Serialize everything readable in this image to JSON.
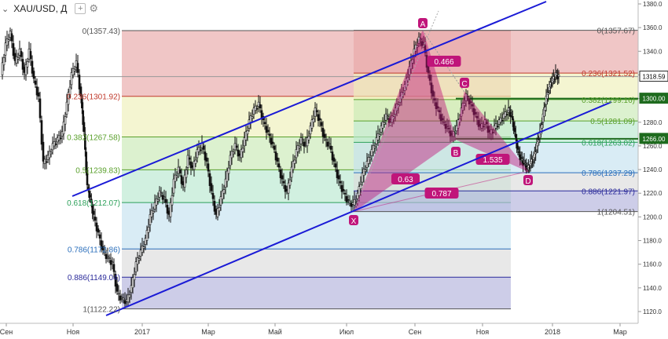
{
  "header": {
    "chevron": "⌄",
    "symbol": "XAU/USD",
    "timeframe": "Д",
    "add_icon": "+",
    "settings_icon": "gear-icon"
  },
  "chart_data": {
    "type": "candlestick",
    "title": "XAU/USD, Д",
    "y_axis": {
      "min": 1120,
      "max": 1380,
      "ticks": [
        1380,
        1360,
        1340,
        1320,
        1300,
        1280,
        1260,
        1240,
        1220,
        1200,
        1180,
        1160,
        1140,
        1120
      ]
    },
    "x_axis": {
      "labels": [
        "Сен",
        "Ноя",
        "2017",
        "Мар",
        "Май",
        "Июл",
        "Сен",
        "Ноя",
        "2018",
        "Мар"
      ]
    },
    "price_labels": [
      {
        "value": "1318.59",
        "price": 1318.59,
        "color": "#ffffff",
        "border": "#222222",
        "text_color": "#000000"
      },
      {
        "value": "1300.00",
        "price": 1300.0,
        "color": "#1e6b1e",
        "border": "#1e6b1e",
        "text_color": "#ffffff"
      },
      {
        "value": "1266.00",
        "price": 1266.0,
        "color": "#1e6b1e",
        "border": "#1e6b1e",
        "text_color": "#ffffff"
      }
    ],
    "fib_left": {
      "levels": [
        {
          "label": "0(1357.43)",
          "price": 1357.43,
          "color": "#555555",
          "fill": "#e8a7a7"
        },
        {
          "label": "0.236(1301.92)",
          "price": 1301.92,
          "color": "#c0392b",
          "fill": "#eef0b8"
        },
        {
          "label": "0.382(1267.58)",
          "price": 1267.58,
          "color": "#5aa02c",
          "fill": "#c9eab5"
        },
        {
          "label": "0.5(1239.83)",
          "price": 1239.83,
          "color": "#5aa02c",
          "fill": "#b8e8d0"
        },
        {
          "label": "0.618(1212.07)",
          "price": 1212.07,
          "color": "#2ca05a",
          "fill": "#c4e2f0"
        },
        {
          "label": "0.786(1172.86)",
          "price": 1172.86,
          "color": "#2a6ebb",
          "fill": "#dcdcdc"
        },
        {
          "label": "0.886(1149.04)",
          "price": 1149.04,
          "color": "#2a2a9a",
          "fill": "#b2b2dc"
        },
        {
          "label": "1(1122.22)",
          "price": 1122.22,
          "color": "#555555",
          "fill": null
        }
      ]
    },
    "fib_right": {
      "levels": [
        {
          "label": "0(1357.67)",
          "price": 1357.67,
          "color": "#555555",
          "fill": "#e8a7a7"
        },
        {
          "label": "0.236(1321.52)",
          "price": 1321.52,
          "color": "#c0392b",
          "fill": "#eef0b8"
        },
        {
          "label": "0.382(1299.16)",
          "price": 1299.16,
          "color": "#5aa02c",
          "fill": "#c9eab5"
        },
        {
          "label": "0.5(1281.09)",
          "price": 1281.09,
          "color": "#5aa02c",
          "fill": "#b8e8d0"
        },
        {
          "label": "0.618(1263.02)",
          "price": 1263.02,
          "color": "#2ca05a",
          "fill": "#c4e2f0"
        },
        {
          "label": "0.786(1237.29)",
          "price": 1237.29,
          "color": "#2a6ebb",
          "fill": "#dcdcdc"
        },
        {
          "label": "0.886(1221.97)",
          "price": 1221.97,
          "color": "#2a2a9a",
          "fill": "#b2b2dc"
        },
        {
          "label": "1(1204.51)",
          "price": 1204.51,
          "color": "#555555",
          "fill": null
        }
      ]
    },
    "pattern": {
      "points": [
        {
          "name": "X",
          "price": 1204.5
        },
        {
          "name": "A",
          "price": 1357.5
        },
        {
          "name": "B",
          "price": 1265.5
        },
        {
          "name": "C",
          "price": 1305.5
        },
        {
          "name": "D",
          "price": 1238.5
        }
      ],
      "ratios": [
        {
          "label": "0.466"
        },
        {
          "label": "0.63"
        },
        {
          "label": "0.787"
        },
        {
          "label": "1.535"
        }
      ],
      "color": "#c0157a"
    },
    "horizontal_lines": [
      {
        "price": 1318.59,
        "color": "#999999"
      },
      {
        "price": 1300.0,
        "color": "#1e6b1e"
      },
      {
        "price": 1266.0,
        "color": "#1e6b1e"
      }
    ],
    "channel": {
      "color": "#1a1ad6"
    }
  }
}
